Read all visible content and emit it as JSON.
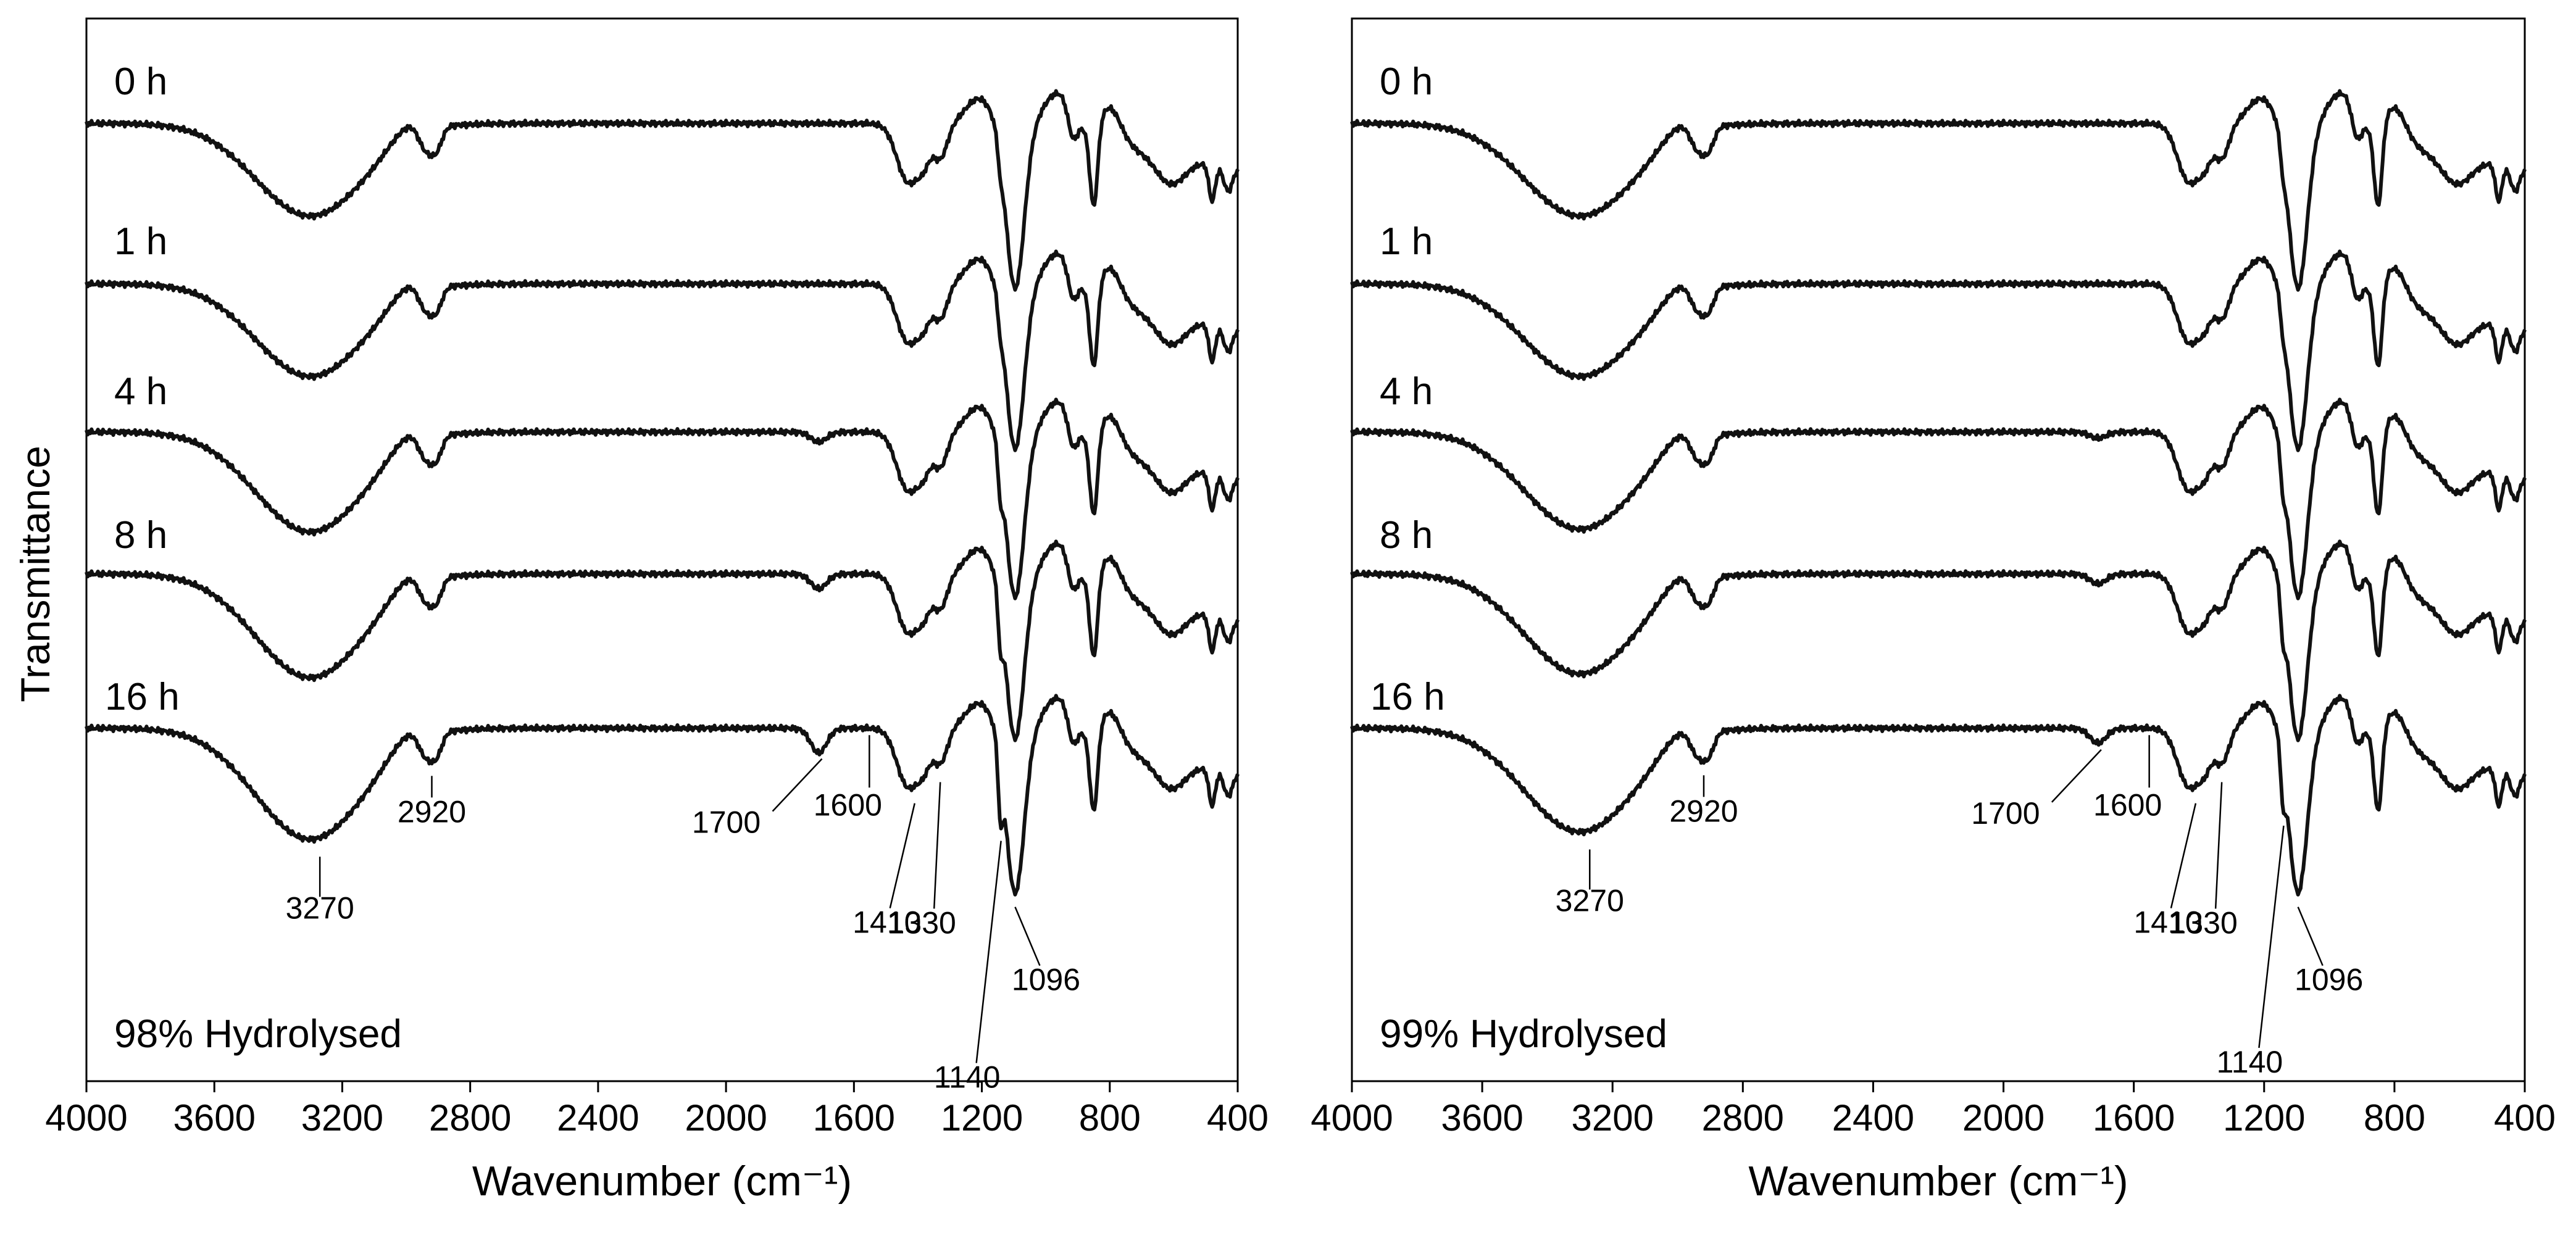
{
  "y_axis_label": "Transmittance",
  "chart_data": [
    {
      "type": "line",
      "panel": "left",
      "title": "98% Hydrolysed",
      "xlabel": "Wavenumber (cm⁻¹)",
      "ylabel": "Transmittance",
      "xlim": [
        4000,
        400
      ],
      "x_ticks": [
        4000,
        3600,
        3200,
        2800,
        2400,
        2000,
        1600,
        1200,
        800,
        400
      ],
      "series": [
        {
          "name": "0 h",
          "offset": 0.0,
          "depth": 1.0
        },
        {
          "name": "1 h",
          "offset": 1.0,
          "depth": 1.0
        },
        {
          "name": "4 h",
          "offset": 2.0,
          "depth": 1.08
        },
        {
          "name": "8 h",
          "offset": 3.0,
          "depth": 1.12
        },
        {
          "name": "16 h",
          "offset": 4.0,
          "depth": 1.2
        }
      ],
      "annotations": [
        "3270",
        "2920",
        "1700",
        "1600",
        "1410",
        "1330",
        "1140",
        "1096"
      ]
    },
    {
      "type": "line",
      "panel": "right",
      "title": "99% Hydrolysed",
      "xlabel": "Wavenumber (cm⁻¹)",
      "ylabel": "Transmittance",
      "xlim": [
        4000,
        400
      ],
      "x_ticks": [
        4000,
        3600,
        3200,
        2800,
        2400,
        2000,
        1600,
        1200,
        800,
        400
      ],
      "series": [
        {
          "name": "0 h",
          "offset": 0.0,
          "depth": 1.0
        },
        {
          "name": "1 h",
          "offset": 1.0,
          "depth": 1.0
        },
        {
          "name": "4 h",
          "offset": 2.0,
          "depth": 1.05
        },
        {
          "name": "8 h",
          "offset": 3.0,
          "depth": 1.08
        },
        {
          "name": "16 h",
          "offset": 4.0,
          "depth": 1.12
        }
      ],
      "annotations": [
        "3270",
        "2920",
        "1700",
        "1600",
        "1410",
        "1330",
        "1140",
        "1096"
      ]
    }
  ]
}
